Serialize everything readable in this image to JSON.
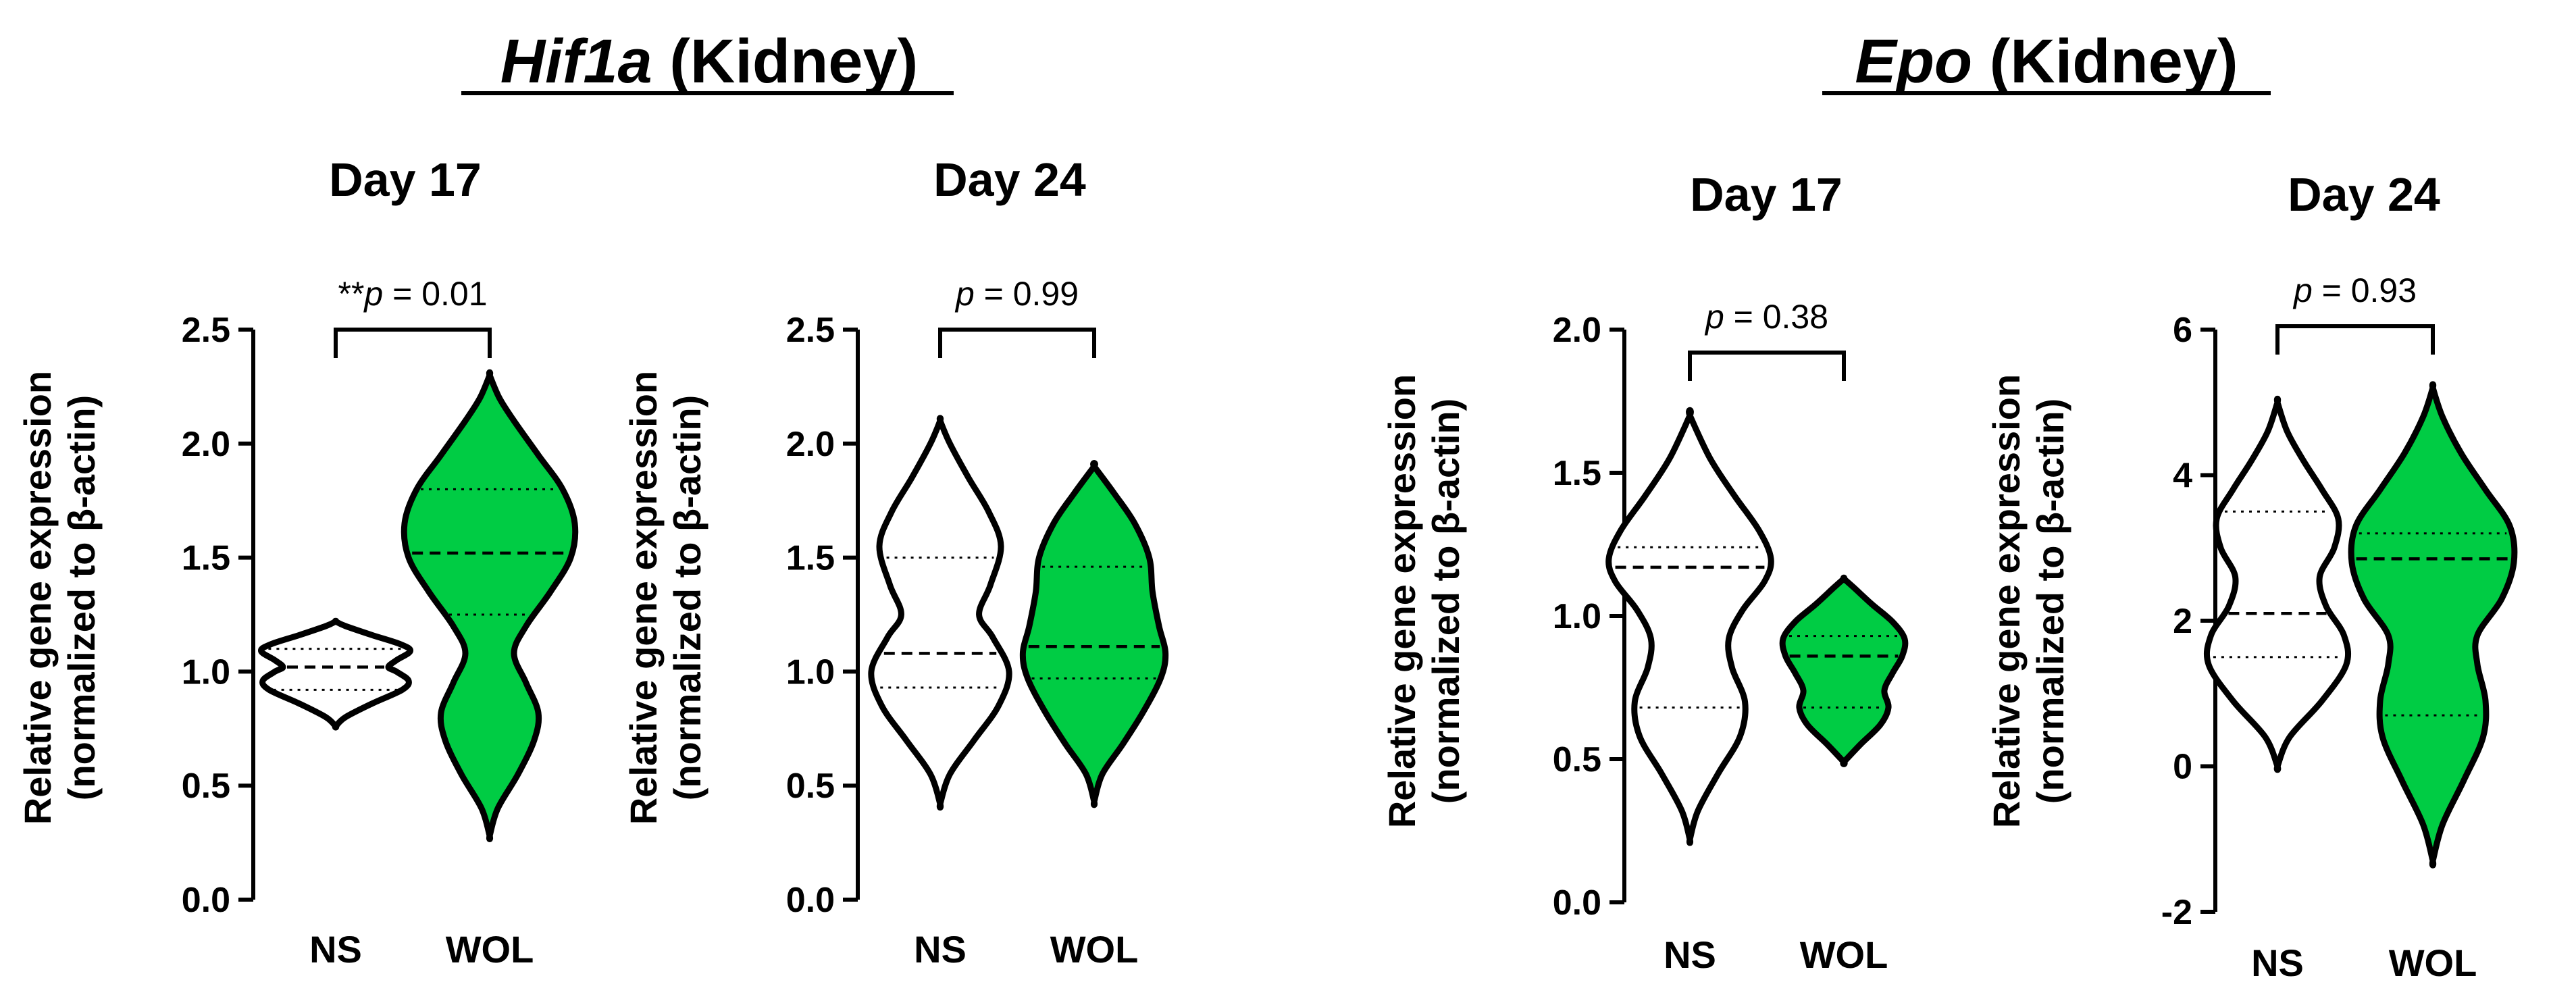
{
  "headings": [
    {
      "gene": "Hif1a",
      "suffix": " (Kidney)"
    },
    {
      "gene": "Epo",
      "suffix": " (Kidney)"
    }
  ],
  "ylabel_line1": "Relative gene expression",
  "ylabel_line2": "(normalized to β-actin)",
  "colors": {
    "ns_fill": "#ffffff",
    "wol_fill": "#00cc44",
    "stroke": "#000000"
  },
  "chart_data": [
    {
      "type": "violin",
      "gene": "Hif1a",
      "title": "Day 17",
      "categories": [
        "NS",
        "WOL"
      ],
      "ylim": [
        0,
        2.5
      ],
      "yticks": [
        "0.0",
        "0.5",
        "1.0",
        "1.5",
        "2.0",
        "2.5"
      ],
      "ylabel": "Relative gene expression (normalized to β-actin)",
      "significance": {
        "prefix": "**",
        "italic": "p",
        "text": " = 0.01"
      },
      "violins": [
        {
          "name": "NS",
          "fill": "white",
          "min": 0.76,
          "max": 1.22,
          "q1": 0.92,
          "median": 1.02,
          "q3": 1.1,
          "profile": [
            [
              0.76,
              0.0
            ],
            [
              0.8,
              0.12
            ],
            [
              0.86,
              0.45
            ],
            [
              0.92,
              0.82
            ],
            [
              0.96,
              0.9
            ],
            [
              1.0,
              0.75
            ],
            [
              1.02,
              0.65
            ],
            [
              1.05,
              0.75
            ],
            [
              1.09,
              0.92
            ],
            [
              1.12,
              0.8
            ],
            [
              1.16,
              0.45
            ],
            [
              1.2,
              0.12
            ],
            [
              1.22,
              0.0
            ]
          ]
        },
        {
          "name": "WOL",
          "fill": "green",
          "min": 0.28,
          "max": 2.3,
          "q1": 1.25,
          "median": 1.52,
          "q3": 1.8,
          "profile": [
            [
              0.28,
              0.0
            ],
            [
              0.4,
              0.1
            ],
            [
              0.55,
              0.35
            ],
            [
              0.7,
              0.55
            ],
            [
              0.82,
              0.6
            ],
            [
              0.95,
              0.45
            ],
            [
              1.08,
              0.3
            ],
            [
              1.2,
              0.45
            ],
            [
              1.35,
              0.75
            ],
            [
              1.5,
              1.0
            ],
            [
              1.65,
              1.05
            ],
            [
              1.8,
              0.9
            ],
            [
              1.95,
              0.6
            ],
            [
              2.1,
              0.3
            ],
            [
              2.2,
              0.12
            ],
            [
              2.3,
              0.0
            ]
          ]
        }
      ]
    },
    {
      "type": "violin",
      "gene": "Hif1a",
      "title": "Day 24",
      "categories": [
        "NS",
        "WOL"
      ],
      "ylim": [
        0,
        2.5
      ],
      "yticks": [
        "0.0",
        "0.5",
        "1.0",
        "1.5",
        "2.0",
        "2.5"
      ],
      "ylabel": "Relative gene expression (normalized to β-actin)",
      "significance": {
        "prefix": "",
        "italic": "p",
        "text": " = 0.99"
      },
      "violins": [
        {
          "name": "NS",
          "fill": "white",
          "min": 0.42,
          "max": 2.1,
          "q1": 0.93,
          "median": 1.08,
          "q3": 1.5,
          "profile": [
            [
              0.42,
              0.0
            ],
            [
              0.55,
              0.12
            ],
            [
              0.7,
              0.42
            ],
            [
              0.85,
              0.72
            ],
            [
              1.0,
              0.85
            ],
            [
              1.15,
              0.65
            ],
            [
              1.25,
              0.48
            ],
            [
              1.38,
              0.62
            ],
            [
              1.55,
              0.75
            ],
            [
              1.7,
              0.6
            ],
            [
              1.85,
              0.35
            ],
            [
              2.0,
              0.12
            ],
            [
              2.1,
              0.0
            ]
          ]
        },
        {
          "name": "WOL",
          "fill": "green",
          "min": 0.43,
          "max": 1.9,
          "q1": 0.97,
          "median": 1.11,
          "q3": 1.46,
          "profile": [
            [
              0.43,
              0.0
            ],
            [
              0.55,
              0.1
            ],
            [
              0.68,
              0.35
            ],
            [
              0.82,
              0.6
            ],
            [
              0.97,
              0.82
            ],
            [
              1.08,
              0.88
            ],
            [
              1.2,
              0.8
            ],
            [
              1.35,
              0.72
            ],
            [
              1.5,
              0.68
            ],
            [
              1.65,
              0.5
            ],
            [
              1.78,
              0.25
            ],
            [
              1.9,
              0.0
            ]
          ]
        }
      ]
    },
    {
      "type": "violin",
      "gene": "Epo",
      "title": "Day 17",
      "categories": [
        "NS",
        "WOL"
      ],
      "ylim": [
        0,
        2.0
      ],
      "yticks": [
        "0.0",
        "0.5",
        "1.0",
        "1.5",
        "2.0"
      ],
      "ylabel": "Relative gene expression (normalized to β-actin)",
      "significance": {
        "prefix": "",
        "italic": "p",
        "text": " = 0.38"
      },
      "violins": [
        {
          "name": "NS",
          "fill": "white",
          "min": 0.22,
          "max": 1.7,
          "q1": 0.68,
          "median": 1.17,
          "q3": 1.24,
          "profile": [
            [
              0.22,
              0.0
            ],
            [
              0.32,
              0.1
            ],
            [
              0.45,
              0.35
            ],
            [
              0.58,
              0.62
            ],
            [
              0.7,
              0.68
            ],
            [
              0.82,
              0.52
            ],
            [
              0.92,
              0.48
            ],
            [
              1.02,
              0.65
            ],
            [
              1.12,
              0.92
            ],
            [
              1.2,
              1.0
            ],
            [
              1.3,
              0.85
            ],
            [
              1.42,
              0.55
            ],
            [
              1.55,
              0.25
            ],
            [
              1.7,
              0.0
            ]
          ]
        },
        {
          "name": "WOL",
          "fill": "green",
          "min": 0.49,
          "max": 1.13,
          "q1": 0.68,
          "median": 0.86,
          "q3": 0.93,
          "profile": [
            [
              0.49,
              0.0
            ],
            [
              0.55,
              0.2
            ],
            [
              0.62,
              0.45
            ],
            [
              0.68,
              0.55
            ],
            [
              0.74,
              0.5
            ],
            [
              0.8,
              0.6
            ],
            [
              0.86,
              0.72
            ],
            [
              0.92,
              0.75
            ],
            [
              0.98,
              0.6
            ],
            [
              1.04,
              0.35
            ],
            [
              1.1,
              0.12
            ],
            [
              1.13,
              0.0
            ]
          ]
        }
      ]
    },
    {
      "type": "violin",
      "gene": "Epo",
      "title": "Day 24",
      "categories": [
        "NS",
        "WOL"
      ],
      "ylim": [
        -2,
        6
      ],
      "yticks": [
        "-2",
        "0",
        "2",
        "4",
        "6"
      ],
      "ylabel": "Relative gene expression (normalized to β-actin)",
      "significance": {
        "prefix": "",
        "italic": "p",
        "text": " = 0.93"
      },
      "violins": [
        {
          "name": "NS",
          "fill": "white",
          "min": 0.0,
          "max": 5.0,
          "q1": 1.5,
          "median": 2.1,
          "q3": 3.5,
          "profile": [
            [
              0.0,
              0.0
            ],
            [
              0.4,
              0.15
            ],
            [
              0.9,
              0.55
            ],
            [
              1.4,
              0.85
            ],
            [
              1.8,
              0.82
            ],
            [
              2.2,
              0.6
            ],
            [
              2.6,
              0.52
            ],
            [
              3.0,
              0.7
            ],
            [
              3.4,
              0.75
            ],
            [
              3.8,
              0.55
            ],
            [
              4.2,
              0.32
            ],
            [
              4.6,
              0.12
            ],
            [
              5.0,
              0.0
            ]
          ]
        },
        {
          "name": "WOL",
          "fill": "green",
          "min": -1.3,
          "max": 5.2,
          "q1": 0.7,
          "median": 2.85,
          "q3": 3.2,
          "profile": [
            [
              -1.3,
              0.0
            ],
            [
              -0.8,
              0.12
            ],
            [
              -0.2,
              0.38
            ],
            [
              0.4,
              0.62
            ],
            [
              0.9,
              0.65
            ],
            [
              1.4,
              0.55
            ],
            [
              1.8,
              0.55
            ],
            [
              2.3,
              0.85
            ],
            [
              2.8,
              1.0
            ],
            [
              3.3,
              0.95
            ],
            [
              3.8,
              0.65
            ],
            [
              4.3,
              0.35
            ],
            [
              4.8,
              0.12
            ],
            [
              5.2,
              0.0
            ]
          ]
        }
      ]
    }
  ]
}
